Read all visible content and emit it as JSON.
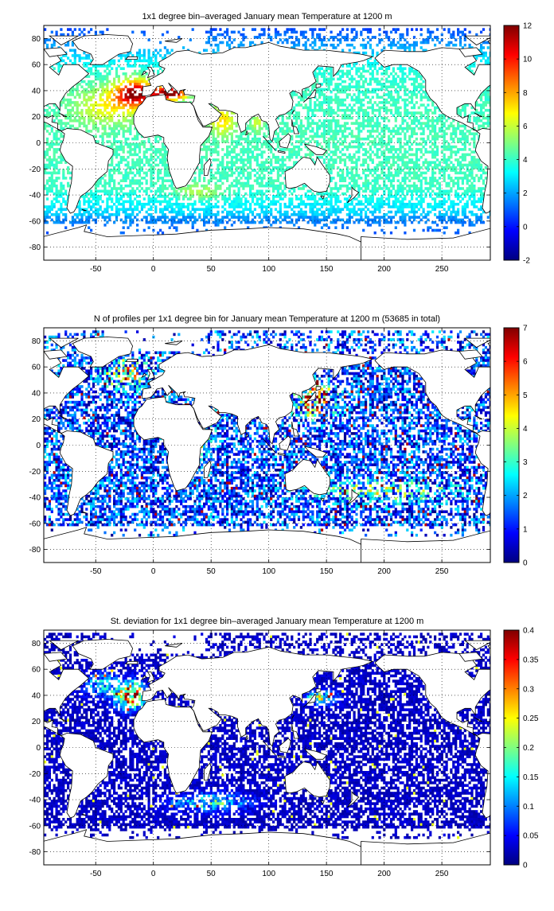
{
  "chart_data": [
    {
      "type": "heatmap",
      "title": "1x1 degree bin–averaged January mean Temperature at 1200 m",
      "xlabel": "",
      "ylabel": "",
      "xlim": [
        -95,
        292
      ],
      "ylim": [
        -90,
        90
      ],
      "x_ticks": [
        -50,
        0,
        50,
        100,
        150,
        200,
        250
      ],
      "y_ticks": [
        80,
        60,
        40,
        20,
        0,
        -20,
        -40,
        -60,
        -80
      ],
      "grid": true,
      "grid_style": "dotted",
      "colormap": "jet",
      "colorbar": {
        "min": -2,
        "max": 12,
        "ticks": [
          12,
          10,
          8,
          6,
          4,
          2,
          0,
          -2
        ]
      },
      "field": "temperature"
    },
    {
      "type": "heatmap",
      "title": "N of profiles per 1x1 degree bin for January mean Temperature at 1200 m (53685 in total)",
      "xlabel": "",
      "ylabel": "",
      "xlim": [
        -95,
        292
      ],
      "ylim": [
        -90,
        90
      ],
      "x_ticks": [
        -50,
        0,
        50,
        100,
        150,
        200,
        250
      ],
      "y_ticks": [
        80,
        60,
        40,
        20,
        0,
        -20,
        -40,
        -60,
        -80
      ],
      "grid": true,
      "grid_style": "dotted",
      "colormap": "jet",
      "colorbar": {
        "min": 0,
        "max": 7,
        "ticks": [
          7,
          6,
          5,
          4,
          3,
          2,
          1,
          0
        ]
      },
      "field": "count"
    },
    {
      "type": "heatmap",
      "title": "St. deviation for 1x1 degree bin–averaged January mean Temperature at 1200 m",
      "xlabel": "",
      "ylabel": "",
      "xlim": [
        -95,
        292
      ],
      "ylim": [
        -90,
        90
      ],
      "x_ticks": [
        -50,
        0,
        50,
        100,
        150,
        200,
        250
      ],
      "y_ticks": [
        80,
        60,
        40,
        20,
        0,
        -20,
        -40,
        -60,
        -80
      ],
      "grid": true,
      "grid_style": "dotted",
      "colormap": "jet",
      "colorbar": {
        "min": 0,
        "max": 0.4,
        "ticks": [
          0.4,
          0.35,
          0.3,
          0.25,
          0.2,
          0.15,
          0.1,
          0.05,
          0
        ]
      },
      "field": "stdev"
    }
  ]
}
